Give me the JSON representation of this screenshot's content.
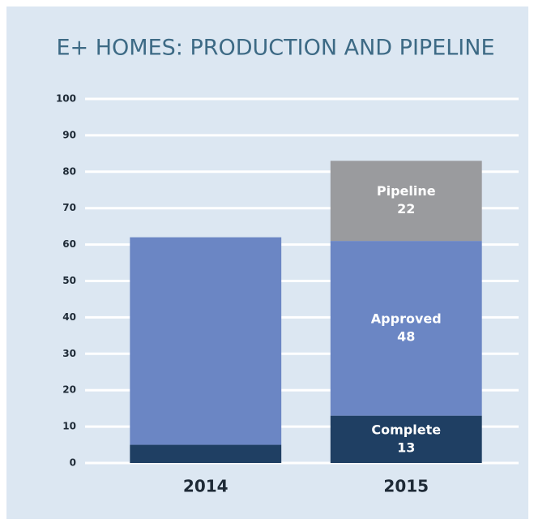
{
  "chart_data": {
    "type": "stacked_bar",
    "title": "E+ HOMES: PRODUCTION AND PIPELINE",
    "categories": [
      "2014",
      "2015"
    ],
    "series": [
      {
        "name": "Complete",
        "color": "#1f3f63",
        "values": [
          5,
          13
        ],
        "value_labels": [
          null,
          "13"
        ]
      },
      {
        "name": "Approved",
        "color": "#6b86c4",
        "values": [
          57,
          48
        ],
        "value_labels": [
          null,
          "48"
        ]
      },
      {
        "name": "Pipeline",
        "color": "#9a9b9e",
        "values": [
          null,
          22
        ],
        "value_labels": [
          null,
          "22"
        ]
      }
    ],
    "ylim": [
      0,
      100
    ],
    "yticks": [
      0,
      10,
      20,
      30,
      40,
      50,
      60,
      70,
      80,
      90,
      100
    ],
    "grid": true,
    "grid_color": "#ffffff"
  }
}
